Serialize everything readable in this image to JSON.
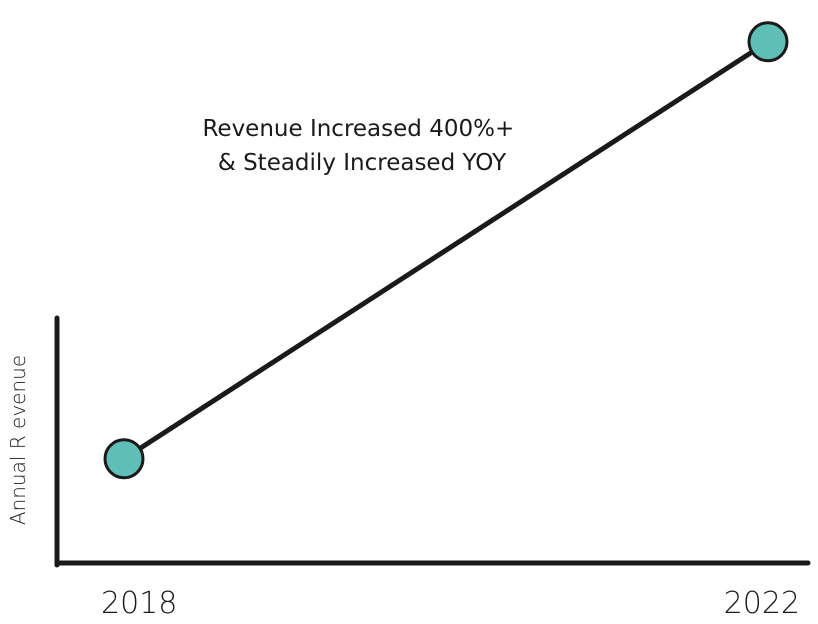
{
  "chart_data": {
    "type": "line",
    "title": "",
    "xlabel": "",
    "ylabel": "Annual R evenue",
    "x": [
      "2018",
      "2022"
    ],
    "series": [
      {
        "values": [
          100,
          500
        ]
      }
    ],
    "ylim": [
      0,
      540
    ],
    "grid": false,
    "legend": "none",
    "annotation": {
      "lines": [
        "Revenue Increased 400%+",
        "& Steadily Increased YOY"
      ]
    },
    "colors": {
      "line": "#1a1a1a",
      "marker_fill": "#5fbfb6",
      "marker_stroke": "#1a1a1a",
      "axis": "#1a1a1a"
    }
  }
}
